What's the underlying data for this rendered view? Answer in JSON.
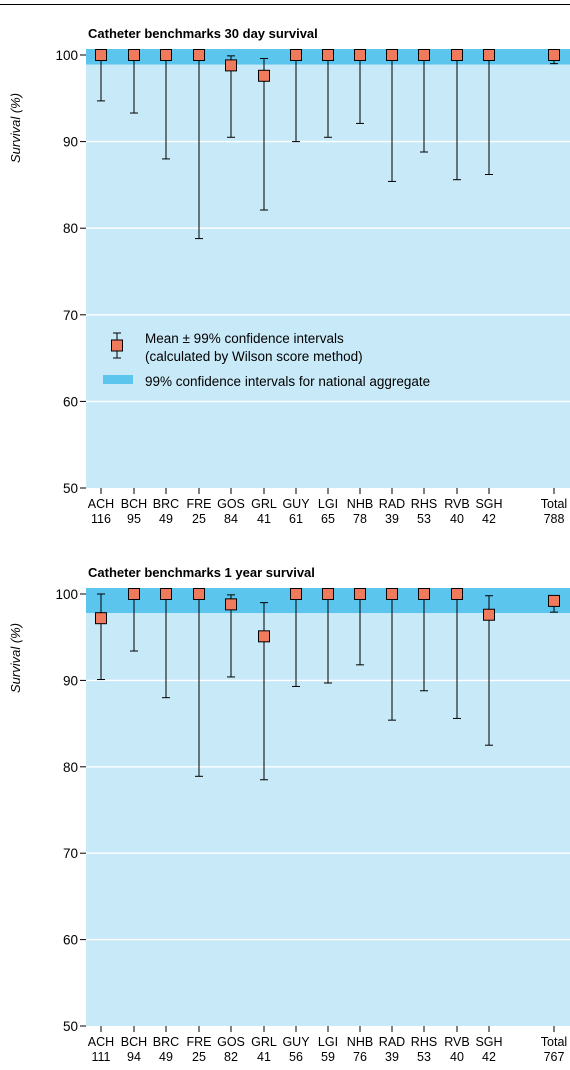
{
  "colors": {
    "plot_bg": "#c8e9f8",
    "band": "#5cc5ee",
    "marker_fill": "#f07a5c",
    "marker_stroke": "#000000",
    "gridline": "#ffffff"
  },
  "legend": {
    "mean_line1": "Mean ± 99% confidence intervals",
    "mean_line2": "(calculated by Wilson score method)",
    "band_label": "99% confidence intervals for national aggregate"
  },
  "chart_data": [
    {
      "type": "scatter",
      "title": "Catheter benchmarks 30 day survival",
      "ylabel": "Survival (%)",
      "ylim": [
        50,
        100
      ],
      "yticks": [
        50,
        60,
        70,
        80,
        90,
        100
      ],
      "grid": true,
      "band": [
        98.9,
        100
      ],
      "categories": [
        "ACH",
        "BCH",
        "BRC",
        "FRE",
        "GOS",
        "GRL",
        "GUY",
        "LGI",
        "NHB",
        "RAD",
        "RHS",
        "RVB",
        "SGH",
        "Total"
      ],
      "n": [
        "116",
        "95",
        "49",
        "25",
        "84",
        "41",
        "61",
        "65",
        "78",
        "39",
        "53",
        "40",
        "42",
        "788"
      ],
      "mean": [
        100,
        100,
        100,
        100,
        98.8,
        97.6,
        100,
        100,
        100,
        100,
        100,
        100,
        100,
        100
      ],
      "lower": [
        94.7,
        93.3,
        88.0,
        78.8,
        90.5,
        82.1,
        90.0,
        90.5,
        92.1,
        85.4,
        88.8,
        85.6,
        86.2,
        99.0
      ],
      "upper": [
        100,
        100,
        100,
        100,
        99.9,
        99.6,
        100,
        100,
        100,
        100,
        100,
        100,
        100,
        100
      ]
    },
    {
      "type": "scatter",
      "title": "Catheter benchmarks 1 year survival",
      "ylabel": "Survival (%)",
      "ylim": [
        50,
        100
      ],
      "yticks": [
        50,
        60,
        70,
        80,
        90,
        100
      ],
      "grid": true,
      "band": [
        97.8,
        100
      ],
      "categories": [
        "ACH",
        "BCH",
        "BRC",
        "FRE",
        "GOS",
        "GRL",
        "GUY",
        "LGI",
        "NHB",
        "RAD",
        "RHS",
        "RVB",
        "SGH",
        "Total"
      ],
      "n": [
        "111",
        "94",
        "49",
        "25",
        "82",
        "41",
        "56",
        "59",
        "76",
        "39",
        "53",
        "40",
        "42",
        "767"
      ],
      "mean": [
        97.2,
        100,
        100,
        100,
        98.8,
        95.1,
        100,
        100,
        100,
        100,
        100,
        100,
        97.6,
        99.2
      ],
      "lower": [
        90.1,
        93.4,
        88.0,
        78.9,
        90.4,
        78.5,
        89.3,
        89.7,
        91.8,
        85.4,
        88.8,
        85.6,
        82.5,
        97.9
      ],
      "upper": [
        100,
        100,
        100,
        100,
        99.9,
        99.0,
        100,
        100,
        100,
        100,
        100,
        100,
        99.8,
        99.8
      ]
    }
  ]
}
